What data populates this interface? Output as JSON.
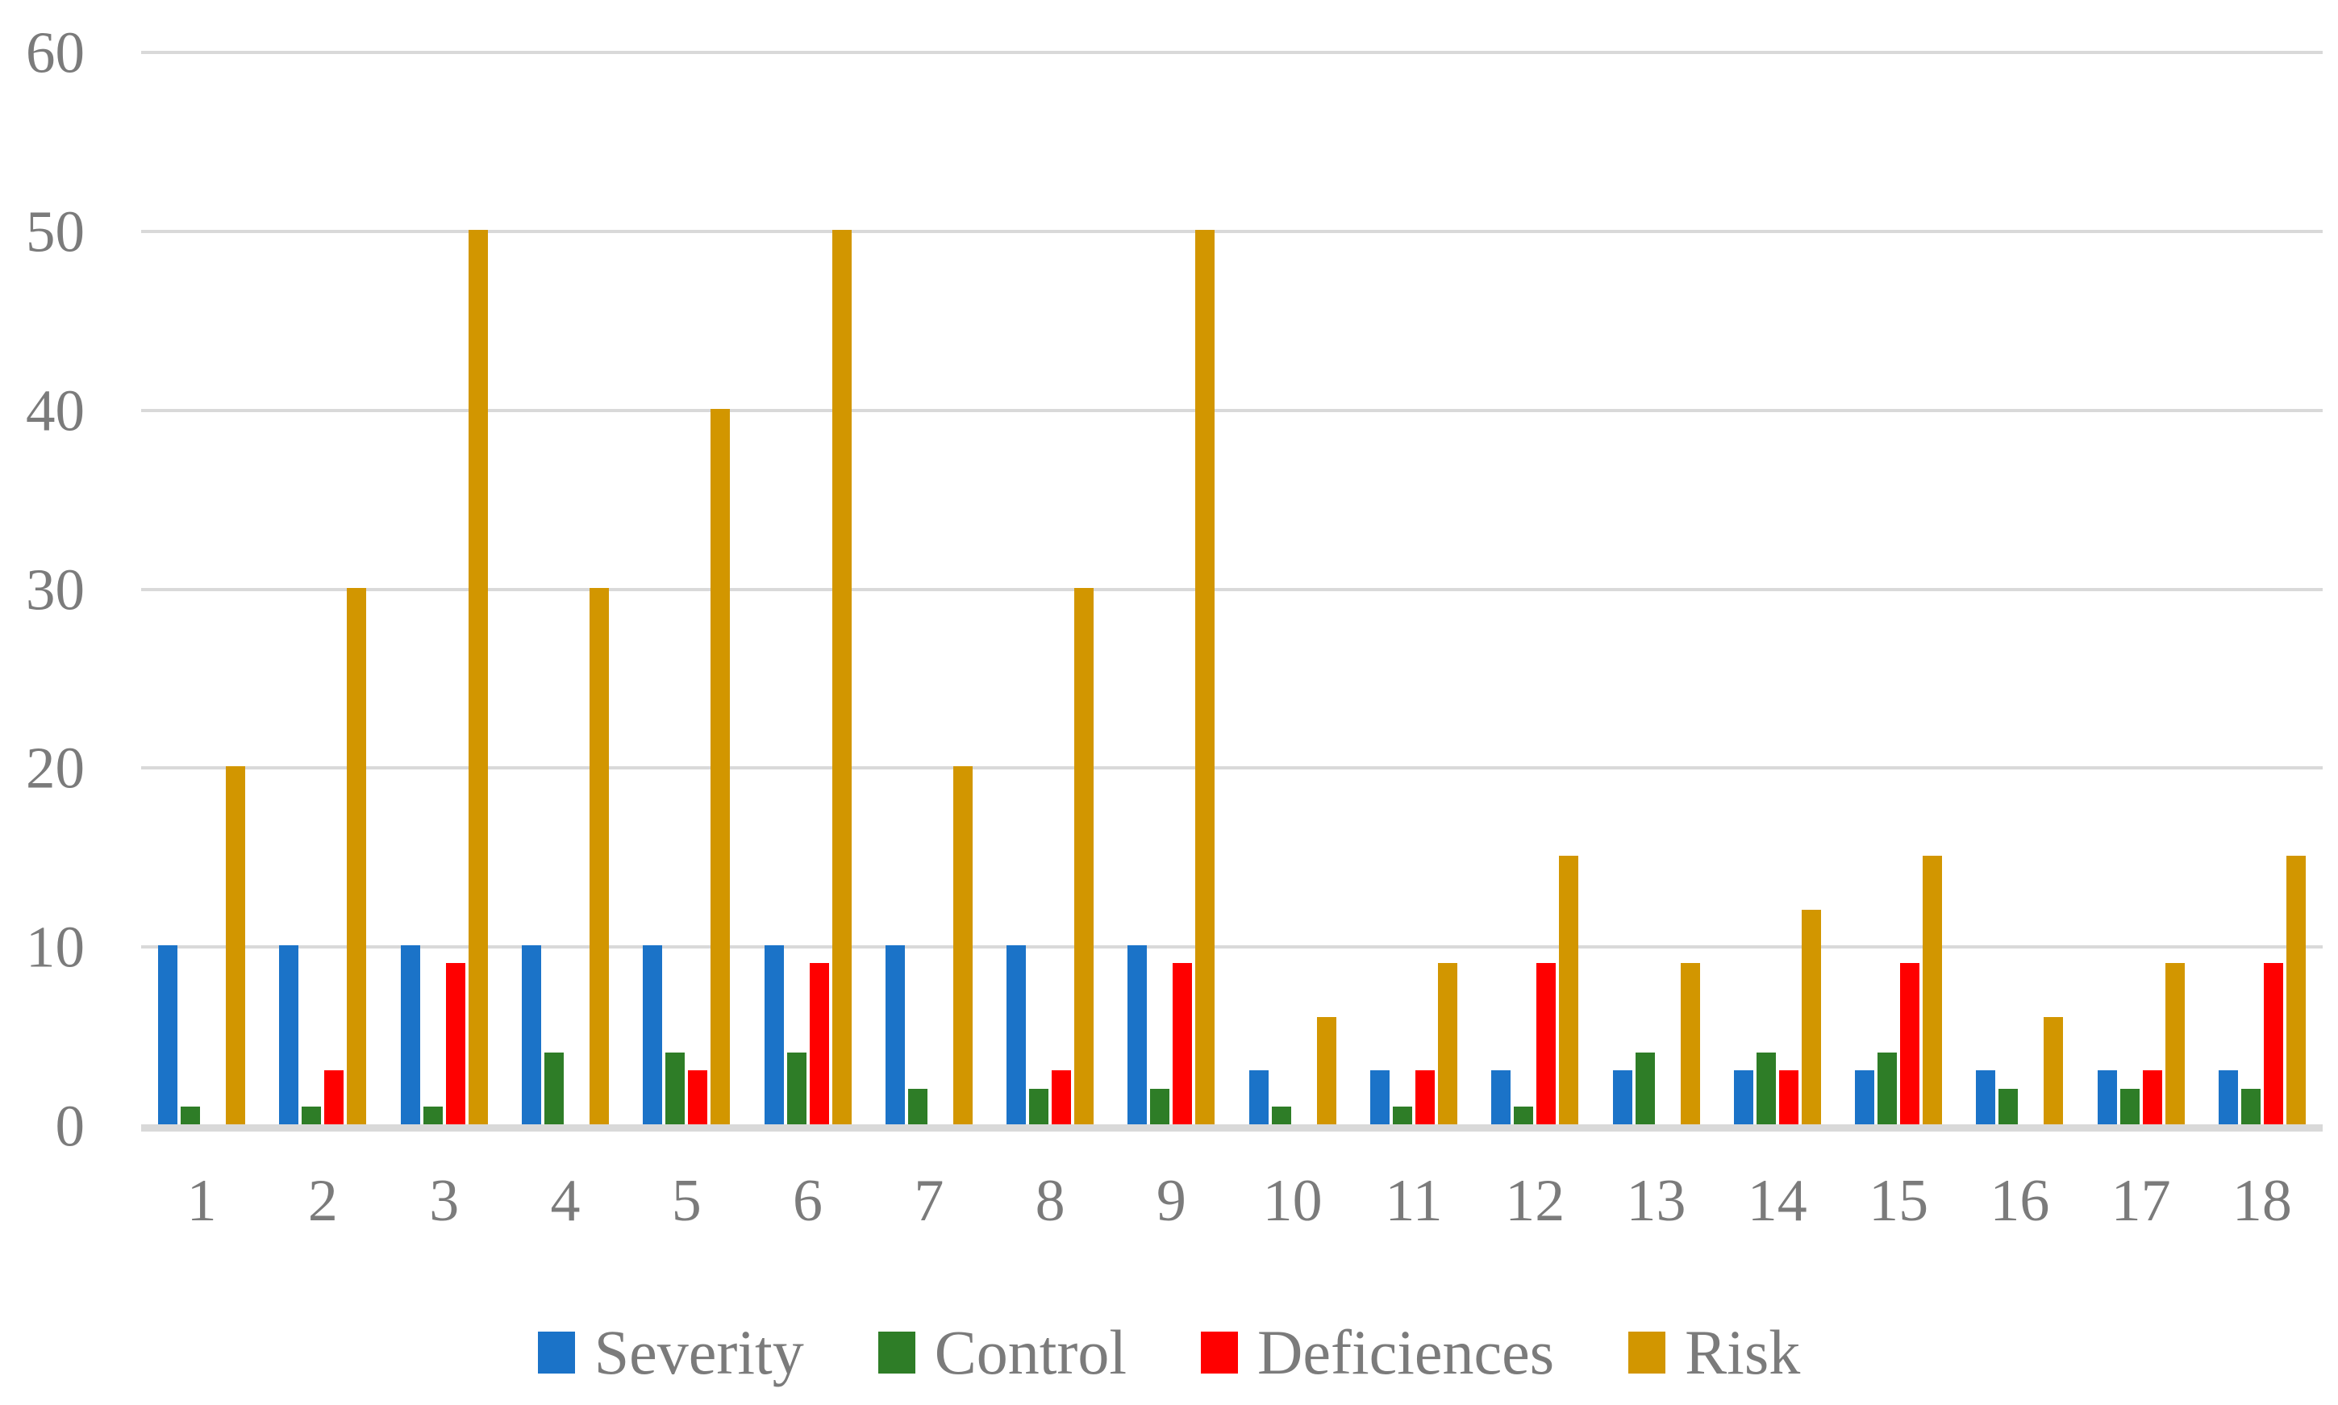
{
  "chart_data": {
    "type": "bar",
    "title": "",
    "xlabel": "",
    "ylabel": "",
    "categories": [
      "1",
      "2",
      "3",
      "4",
      "5",
      "6",
      "7",
      "8",
      "9",
      "10",
      "11",
      "12",
      "13",
      "14",
      "15",
      "16",
      "17",
      "18"
    ],
    "series": [
      {
        "name": "Severity",
        "color": "#1B73C8",
        "values": [
          10,
          10,
          10,
          10,
          10,
          10,
          10,
          10,
          10,
          3,
          3,
          3,
          3,
          3,
          3,
          3,
          3,
          3
        ]
      },
      {
        "name": "Control",
        "color": "#2E7D27",
        "values": [
          1,
          1,
          1,
          4,
          4,
          4,
          2,
          2,
          2,
          1,
          1,
          1,
          4,
          4,
          4,
          2,
          2,
          2
        ]
      },
      {
        "name": "Deficiences",
        "color": "#FF0000",
        "values": [
          0,
          3,
          9,
          0,
          3,
          9,
          0,
          3,
          9,
          0,
          3,
          9,
          0,
          3,
          9,
          0,
          3,
          9
        ]
      },
      {
        "name": "Risk",
        "color": "#D29600",
        "values": [
          20,
          30,
          50,
          30,
          40,
          50,
          20,
          30,
          50,
          6,
          9,
          15,
          9,
          12,
          15,
          6,
          9,
          15
        ]
      }
    ],
    "ylim": [
      0,
      60
    ],
    "yticks": [
      60,
      50,
      40,
      30,
      20,
      10,
      0
    ],
    "grid": true,
    "legend_position": "bottom",
    "gridline_color": "#D9D9D9",
    "axis_text_color": "#7B7B7B",
    "background": "#FFFFFF"
  }
}
